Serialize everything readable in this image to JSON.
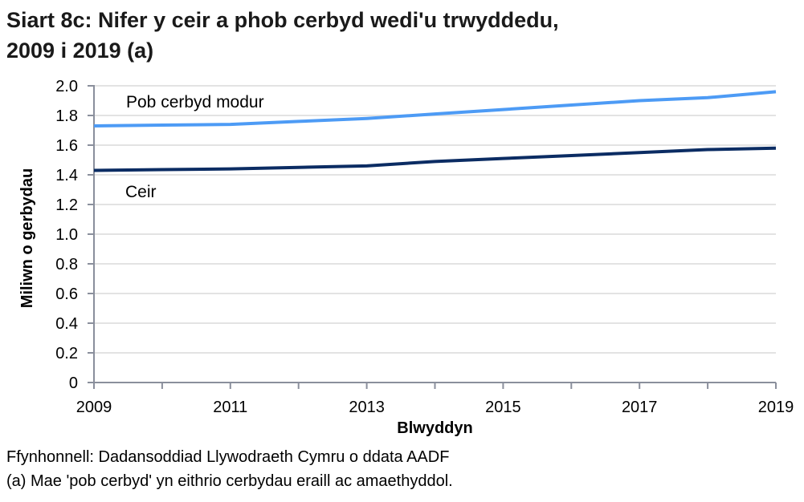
{
  "chart_data": {
    "type": "line",
    "title": "Siart 8c: Nifer y ceir a phob cerbyd wedi'u trwyddedu, 2009 i 2019 (a)",
    "title_lines": [
      "Siart 8c: Nifer y ceir a phob cerbyd wedi'u trwyddedu,",
      "2009 i 2019 (a)"
    ],
    "xlabel": "Blwyddyn",
    "ylabel": "Miliwn o gerbydau",
    "x": [
      2009,
      2010,
      2011,
      2012,
      2013,
      2014,
      2015,
      2016,
      2017,
      2018,
      2019
    ],
    "x_tick_labels": [
      "2009",
      "2011",
      "2013",
      "2015",
      "2017",
      "2019"
    ],
    "y_tick_labels": [
      "0",
      "0.2",
      "0.4",
      "0.6",
      "0.8",
      "1.0",
      "1.2",
      "1.4",
      "1.6",
      "1.8",
      "2.0"
    ],
    "ylim": [
      0,
      2.0
    ],
    "grid": true,
    "legend_position": "inline labels",
    "series": [
      {
        "name": "Pob cerbyd modur",
        "color": "#4d9bf5",
        "values": [
          1.73,
          1.735,
          1.74,
          1.76,
          1.78,
          1.81,
          1.84,
          1.87,
          1.9,
          1.92,
          1.96
        ]
      },
      {
        "name": "Ceir",
        "color": "#0b2c63",
        "values": [
          1.43,
          1.435,
          1.44,
          1.45,
          1.46,
          1.49,
          1.51,
          1.53,
          1.55,
          1.57,
          1.58
        ]
      }
    ]
  },
  "notes": {
    "source": "Ffynhonnell: Dadansoddiad Llywodraeth Cymru o ddata AADF",
    "footnote": "(a) Mae 'pob cerbyd' yn eithrio cerbydau eraill ac amaethyddol."
  }
}
